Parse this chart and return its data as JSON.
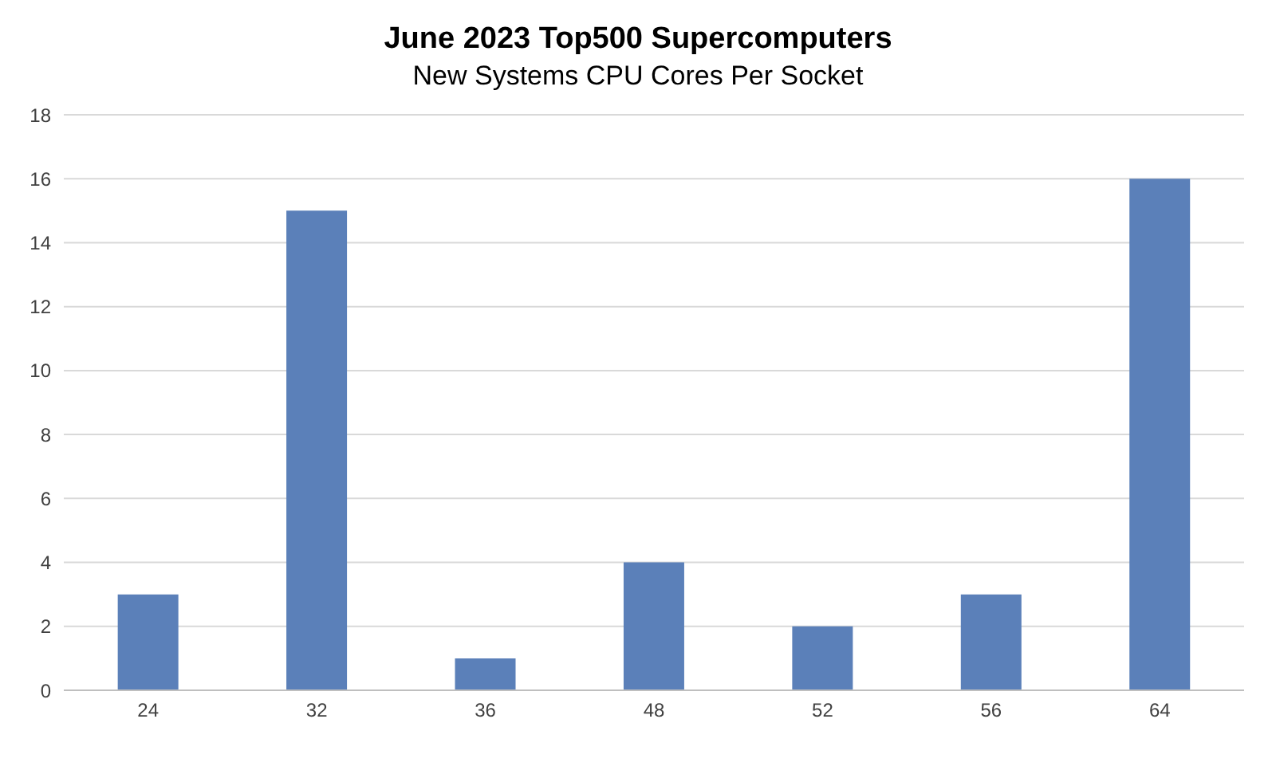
{
  "chart_data": {
    "type": "bar",
    "title": "June 2023 Top500 Supercomputers",
    "subtitle": "New Systems CPU Cores Per Socket",
    "categories": [
      "24",
      "32",
      "36",
      "48",
      "52",
      "56",
      "64"
    ],
    "values": [
      3,
      15,
      1,
      4,
      2,
      3,
      16
    ],
    "color": "#5b80b9",
    "ylim": [
      0,
      18
    ],
    "yticks": [
      0,
      2,
      4,
      6,
      8,
      10,
      12,
      14,
      16,
      18
    ],
    "grid": "y"
  }
}
